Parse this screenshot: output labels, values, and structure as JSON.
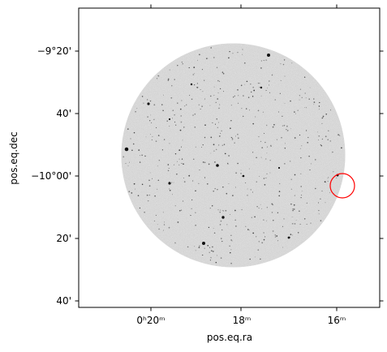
{
  "plot": {
    "xlabel": "pos.eq.ra",
    "ylabel": "pos.eq.dec",
    "x_ticks": [
      {
        "label": "0ʰ20ᵐ"
      },
      {
        "label": "18ᵐ"
      },
      {
        "label": "16ᵐ"
      }
    ],
    "y_ticks": [
      {
        "label": "−9°20'"
      },
      {
        "label": "40'"
      },
      {
        "label": "−10°00'"
      },
      {
        "label": "20'"
      },
      {
        "label": "40'"
      }
    ],
    "colors": {
      "frame": "#000000",
      "marker": "#ff0000",
      "field_background": "#c8c8c8",
      "stars": "#101010"
    },
    "image": {
      "description_type": "circular grayscale sky field with stars",
      "marker": "red-circle"
    }
  }
}
